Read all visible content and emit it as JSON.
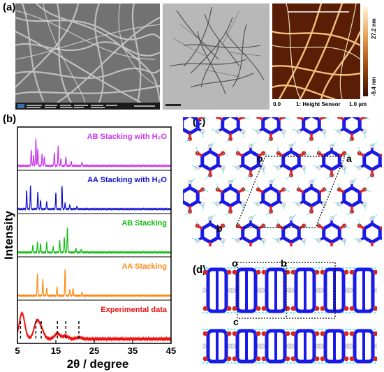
{
  "panels": {
    "a": {
      "label": "(a)",
      "afm": {
        "scale_top": "27.2 nm",
        "scale_bottom": "-9.4 nm",
        "x_start": "0.0",
        "x_end": "1.0 µm",
        "channel": "1: Height Sensor"
      }
    },
    "b": {
      "label": "(b)",
      "traces": [
        {
          "name": "AB Stacking with H₂O",
          "color": "#cc33ee"
        },
        {
          "name": "AA Stacking with H₂O",
          "color": "#1010cc"
        },
        {
          "name": "AB Stacking",
          "color": "#11bb11"
        },
        {
          "name": "AA Stacking",
          "color": "#ff8811"
        },
        {
          "name": "Experimental data",
          "color": "#ee1111"
        }
      ]
    },
    "c": {
      "label": "(c)",
      "axis_o": "o",
      "axis_a": "a",
      "axis_b": "b"
    },
    "d": {
      "label": "(d)",
      "axis_o": "o",
      "axis_b": "b",
      "axis_c": "c"
    }
  },
  "chart_data": {
    "type": "line",
    "xlabel": "2θ / degree",
    "ylabel": "Intensity",
    "xlim": [
      5,
      45
    ],
    "xticks": [
      "5",
      "15",
      "25",
      "35",
      "45"
    ],
    "series": [
      {
        "name": "AB Stacking with H₂O",
        "peaks": [
          [
            8.6,
            0.55
          ],
          [
            9.2,
            0.35
          ],
          [
            9.8,
            0.95
          ],
          [
            10.3,
            0.6
          ],
          [
            11.4,
            0.4
          ],
          [
            12.0,
            0.3
          ],
          [
            14.6,
            0.45
          ],
          [
            15.6,
            0.7
          ],
          [
            16.3,
            0.25
          ],
          [
            17.6,
            0.3
          ],
          [
            19.0,
            0.15
          ],
          [
            21.8,
            0.12
          ]
        ]
      },
      {
        "name": "AA Stacking with H₂O",
        "peaks": [
          [
            7.4,
            0.65
          ],
          [
            8.4,
            0.8
          ],
          [
            10.3,
            0.6
          ],
          [
            11.0,
            0.3
          ],
          [
            12.6,
            0.25
          ],
          [
            15.0,
            0.55
          ],
          [
            16.6,
            0.8
          ],
          [
            17.4,
            0.2
          ],
          [
            18.6,
            0.15
          ],
          [
            20.5,
            0.1
          ]
        ]
      },
      {
        "name": "AB Stacking",
        "peaks": [
          [
            9.0,
            0.25
          ],
          [
            10.2,
            0.35
          ],
          [
            11.0,
            0.3
          ],
          [
            12.6,
            0.35
          ],
          [
            14.3,
            0.2
          ],
          [
            16.0,
            0.4
          ],
          [
            17.2,
            0.5
          ],
          [
            18.0,
            0.85
          ],
          [
            20.2,
            0.15
          ],
          [
            21.6,
            0.1
          ]
        ]
      },
      {
        "name": "AA Stacking",
        "peaks": [
          [
            10.2,
            0.75
          ],
          [
            11.6,
            0.55
          ],
          [
            12.6,
            0.25
          ],
          [
            15.3,
            0.3
          ],
          [
            17.4,
            0.9
          ],
          [
            18.6,
            0.2
          ],
          [
            19.5,
            0.25
          ],
          [
            21.8,
            0.12
          ]
        ]
      },
      {
        "name": "Experimental data",
        "peaks": [
          [
            6.2,
            0.85
          ],
          [
            10.0,
            0.55
          ],
          [
            11.2,
            0.3
          ],
          [
            15.4,
            0.18
          ],
          [
            17.5,
            0.1
          ],
          [
            21.0,
            0.05
          ]
        ]
      }
    ],
    "reference_lines_x": [
      5.8,
      9.8,
      11.2,
      15.4,
      17.6,
      21.0
    ]
  }
}
